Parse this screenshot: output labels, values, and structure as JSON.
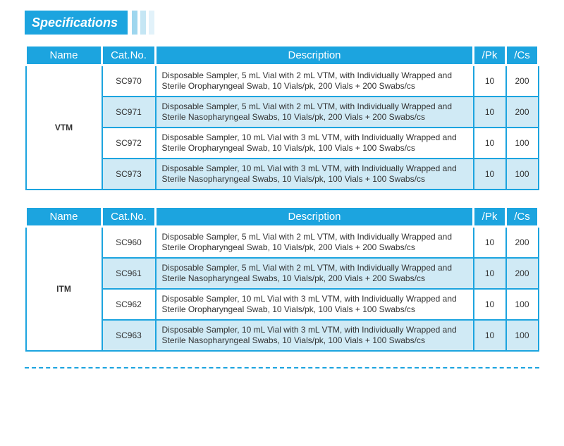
{
  "header": {
    "title": "Specifications"
  },
  "columns": {
    "name": "Name",
    "cat": "Cat.No.",
    "desc": "Description",
    "pk": "/Pk",
    "cs": "/Cs"
  },
  "tables": [
    {
      "name": "VTM",
      "rows": [
        {
          "cat": "SC970",
          "desc": "Disposable Sampler, 5 mL Vial with 2 mL VTM, with Individually Wrapped and Sterile Oropharyngeal Swab, 10 Vials/pk, 200 Vials + 200 Swabs/cs",
          "pk": "10",
          "cs": "200"
        },
        {
          "cat": "SC971",
          "desc": "Disposable Sampler, 5 mL Vial with 2 mL VTM, with Individually Wrapped and Sterile Nasopharyngeal Swabs, 10 Vials/pk, 200 Vials + 200 Swabs/cs",
          "pk": "10",
          "cs": "200"
        },
        {
          "cat": "SC972",
          "desc": "Disposable Sampler, 10 mL Vial with 3 mL VTM, with Individually Wrapped and Sterile Oropharyngeal Swab, 10 Vials/pk, 100 Vials + 100 Swabs/cs",
          "pk": "10",
          "cs": "100"
        },
        {
          "cat": "SC973",
          "desc": "Disposable Sampler, 10 mL Vial with 3 mL VTM, with Individually Wrapped and Sterile Nasopharyngeal Swabs, 10 Vials/pk, 100 Vials + 100 Swabs/cs",
          "pk": "10",
          "cs": "100"
        }
      ]
    },
    {
      "name": "ITM",
      "rows": [
        {
          "cat": "SC960",
          "desc": "Disposable Sampler, 5 mL Vial with 2 mL VTM, with Individually Wrapped and Sterile Oropharyngeal Swab, 10 Vials/pk, 200 Vials + 200 Swabs/cs",
          "pk": "10",
          "cs": "200"
        },
        {
          "cat": "SC961",
          "desc": "Disposable Sampler, 5 mL Vial with 2 mL VTM, with Individually Wrapped and Sterile Nasopharyngeal Swabs, 10 Vials/pk, 200 Vials + 200 Swabs/cs",
          "pk": "10",
          "cs": "200"
        },
        {
          "cat": "SC962",
          "desc": "Disposable Sampler, 10 mL Vial with 3 mL VTM, with Individually Wrapped and Sterile Oropharyngeal Swab, 10 Vials/pk, 100 Vials + 100 Swabs/cs",
          "pk": "10",
          "cs": "100"
        },
        {
          "cat": "SC963",
          "desc": "Disposable Sampler, 10 mL Vial with 3 mL VTM, with Individually Wrapped and Sterile Nasopharyngeal Swabs, 10 Vials/pk, 100 Vials + 100 Swabs/cs",
          "pk": "10",
          "cs": "100"
        }
      ]
    }
  ],
  "style": {
    "brand_color": "#1ca4df",
    "alt_row_bg": "#d0eaf5",
    "background": "#ffffff",
    "header_text_color": "#ffffff",
    "body_text_color": "#333333"
  }
}
